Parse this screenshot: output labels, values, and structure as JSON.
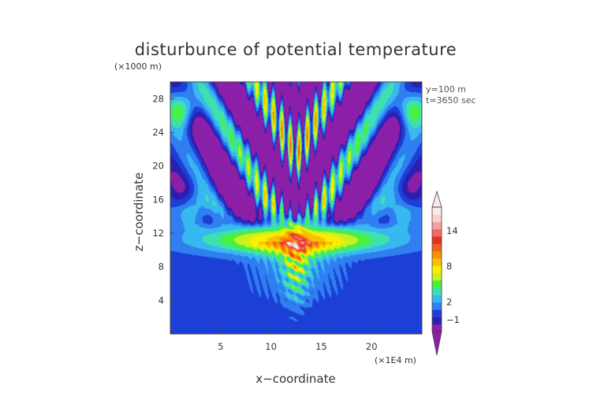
{
  "chart_data": {
    "type": "heatmap",
    "title": "disturbunce of potential temperature",
    "xlabel": "x−coordinate",
    "ylabel": "z−coordinate",
    "x_unit": "(×1E4 m)",
    "y_unit": "(×1000 m)",
    "xlim": [
      0,
      25
    ],
    "ylim": [
      0,
      30
    ],
    "xticks": [
      5,
      10,
      15,
      20
    ],
    "yticks": [
      4,
      8,
      12,
      16,
      20,
      24,
      28
    ],
    "annotations": [
      "y=100 m",
      "t=3650 sec"
    ],
    "colorbar": {
      "tick_labels": [
        "14",
        "8",
        "2",
        "−1"
      ],
      "tick_values": [
        14,
        8,
        2,
        -1
      ],
      "range": [
        -3,
        18
      ],
      "extend": "both",
      "colors": [
        "#8b1fa8",
        "#2a1fb0",
        "#1c3fd6",
        "#2f7ff0",
        "#38b8f0",
        "#3fe0b0",
        "#48f040",
        "#c8f020",
        "#f8f000",
        "#f8c000",
        "#f89000",
        "#f06020",
        "#e83020",
        "#f06868",
        "#f8a0a0",
        "#f8d0d0",
        "#fce8e8"
      ]
    },
    "field_description": "background ~0 (blue) below z=10; warm band 0-10 near z=10-13; plume core near x=12.5; alternating warm/cold wave bands radiating upward; purple (negative) aloft"
  }
}
